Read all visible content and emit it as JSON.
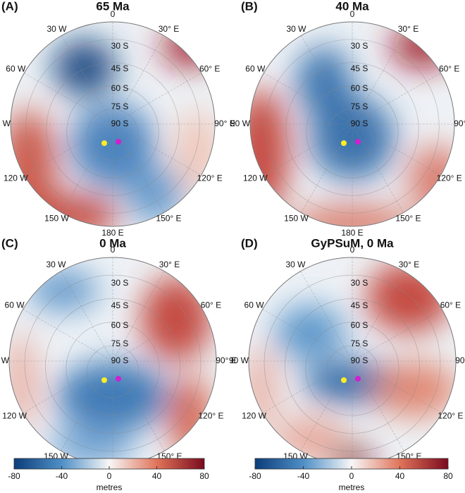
{
  "panels": [
    {
      "label": "(A)",
      "title": "65 Ma"
    },
    {
      "label": "(B)",
      "title": "40 Ma"
    },
    {
      "label": "(C)",
      "title": "0 Ma"
    },
    {
      "label": "(D)",
      "title": "GyPSuM, 0 Ma"
    }
  ],
  "longitude_labels": [
    "0",
    "30° E",
    "60° E",
    "90° E",
    "120° E",
    "150° E",
    "180 E",
    "150 W",
    "120 W",
    "90 W",
    "60 W",
    "30 W"
  ],
  "latitude_labels": [
    "30 S",
    "45 S",
    "60 S",
    "75 S",
    "90 S"
  ],
  "colorbars": [
    {
      "lim": [
        -80,
        80
      ],
      "ticks": [
        -80,
        -40,
        0,
        40,
        80
      ],
      "label": "metres"
    },
    {
      "lim": [
        -80,
        80
      ],
      "ticks": [
        -80,
        -40,
        0,
        40,
        80
      ],
      "label": "metres"
    }
  ]
}
